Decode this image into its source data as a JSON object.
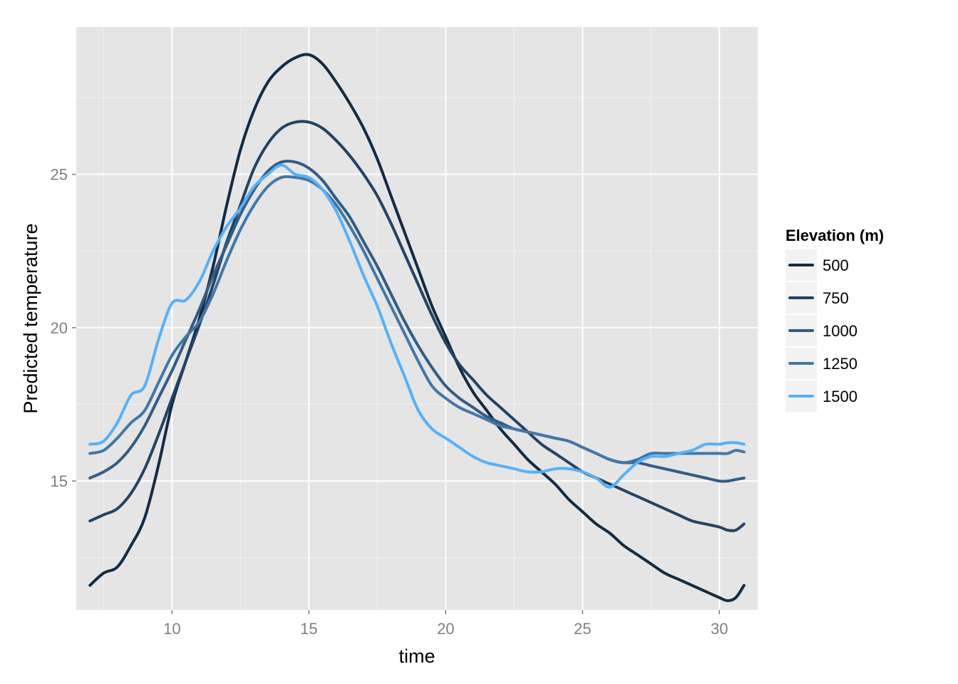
{
  "chart_data": {
    "type": "line",
    "xlabel": "time",
    "ylabel": "Predicted temperature",
    "xlim": [
      6.5,
      31.4
    ],
    "ylim": [
      10.8,
      29.8
    ],
    "x_ticks": [
      10,
      15,
      20,
      25,
      30
    ],
    "y_ticks": [
      15,
      20,
      25
    ],
    "grid": true,
    "legend": {
      "title": "Elevation (m)",
      "position": "right"
    },
    "colors": {
      "panel_bg": "#e5e5e5",
      "grid_major": "#ffffff",
      "grid_minor": "#f2f2f2",
      "legend_key_bg": "#f2f2f2"
    },
    "series": [
      {
        "name": "500",
        "color": "#132b43",
        "x": [
          7,
          7.5,
          8,
          8.5,
          9,
          9.5,
          10,
          10.5,
          11,
          11.5,
          12,
          12.5,
          13,
          13.5,
          14,
          14.5,
          15,
          15.5,
          16,
          16.5,
          17,
          17.5,
          18,
          18.5,
          19,
          19.5,
          20,
          20.5,
          21,
          21.5,
          22,
          22.5,
          23,
          23.5,
          24,
          24.5,
          25,
          25.5,
          26,
          26.5,
          27,
          27.5,
          28,
          28.5,
          29,
          29.5,
          30,
          30.3,
          30.6,
          30.9
        ],
        "y": [
          11.6,
          12,
          12.2,
          12.9,
          13.8,
          15.5,
          17.5,
          18.9,
          20.3,
          22.0,
          24.0,
          25.8,
          27.1,
          28.0,
          28.5,
          28.8,
          28.9,
          28.6,
          28.0,
          27.3,
          26.5,
          25.5,
          24.3,
          23.1,
          21.9,
          20.7,
          19.7,
          18.7,
          17.9,
          17.3,
          16.7,
          16.2,
          15.7,
          15.3,
          14.9,
          14.4,
          14.0,
          13.6,
          13.3,
          12.9,
          12.6,
          12.3,
          12.0,
          11.8,
          11.6,
          11.4,
          11.2,
          11.1,
          11.2,
          11.6
        ]
      },
      {
        "name": "750",
        "color": "#234363",
        "x": [
          7,
          7.5,
          8,
          8.5,
          9,
          9.5,
          10,
          10.5,
          11,
          11.5,
          12,
          12.5,
          13,
          13.5,
          14,
          14.5,
          15,
          15.5,
          16,
          16.5,
          17,
          17.5,
          18,
          18.5,
          19,
          19.5,
          20,
          20.5,
          21,
          21.5,
          22,
          22.5,
          23,
          23.5,
          24,
          24.5,
          25,
          25.5,
          26,
          26.5,
          27,
          27.5,
          28,
          28.5,
          29,
          29.5,
          30,
          30.3,
          30.6,
          30.9
        ],
        "y": [
          13.7,
          13.9,
          14.1,
          14.6,
          15.4,
          16.5,
          17.7,
          18.9,
          20.1,
          21.4,
          22.8,
          24.0,
          25.2,
          26.0,
          26.5,
          26.7,
          26.7,
          26.5,
          26.1,
          25.6,
          25.0,
          24.3,
          23.4,
          22.4,
          21.4,
          20.4,
          19.5,
          18.8,
          18.3,
          17.8,
          17.4,
          17.0,
          16.6,
          16.2,
          15.9,
          15.6,
          15.3,
          15.1,
          14.9,
          14.7,
          14.5,
          14.3,
          14.1,
          13.9,
          13.7,
          13.6,
          13.5,
          13.4,
          13.4,
          13.6
        ]
      },
      {
        "name": "1000",
        "color": "#325c84",
        "x": [
          7,
          7.5,
          8,
          8.5,
          9,
          9.5,
          10,
          10.5,
          11,
          11.5,
          12,
          12.5,
          13,
          13.5,
          14,
          14.5,
          15,
          15.5,
          16,
          16.5,
          17,
          17.5,
          18,
          18.5,
          19,
          19.5,
          20,
          20.5,
          21,
          21.5,
          22,
          22.5,
          23,
          23.5,
          24,
          24.5,
          25,
          25.5,
          26,
          26.5,
          27,
          27.5,
          28,
          28.5,
          29,
          29.5,
          30,
          30.3,
          30.6,
          30.9
        ],
        "y": [
          15.1,
          15.3,
          15.6,
          16.1,
          16.8,
          17.7,
          18.6,
          19.6,
          20.6,
          21.7,
          22.7,
          23.7,
          24.5,
          25.1,
          25.4,
          25.4,
          25.2,
          24.8,
          24.2,
          23.6,
          22.8,
          22.0,
          21.1,
          20.2,
          19.4,
          18.7,
          18.1,
          17.7,
          17.4,
          17.1,
          16.9,
          16.7,
          16.6,
          16.5,
          16.4,
          16.3,
          16.1,
          15.9,
          15.7,
          15.6,
          15.6,
          15.5,
          15.4,
          15.3,
          15.2,
          15.1,
          15.0,
          15.0,
          15.05,
          15.1
        ]
      },
      {
        "name": "1250",
        "color": "#4277a6",
        "x": [
          7,
          7.5,
          8,
          8.5,
          9,
          9.5,
          10,
          10.5,
          11,
          11.5,
          12,
          12.5,
          13,
          13.5,
          14,
          14.5,
          15,
          15.5,
          16,
          16.5,
          17,
          17.5,
          18,
          18.5,
          19,
          19.5,
          20,
          20.5,
          21,
          21.5,
          22,
          22.5,
          23,
          23.5,
          24,
          24.5,
          25,
          25.5,
          26,
          26.5,
          27,
          27.5,
          28,
          28.5,
          29,
          29.5,
          30,
          30.3,
          30.6,
          30.9
        ],
        "y": [
          15.9,
          16.0,
          16.4,
          16.9,
          17.3,
          18.2,
          19.1,
          19.7,
          20.2,
          21.1,
          22.2,
          23.2,
          24.0,
          24.6,
          24.9,
          24.9,
          24.8,
          24.5,
          24.0,
          23.3,
          22.5,
          21.6,
          20.7,
          19.8,
          18.9,
          18.1,
          17.7,
          17.4,
          17.2,
          17.0,
          16.8,
          16.7,
          16.6,
          16.5,
          16.4,
          16.3,
          16.1,
          15.9,
          15.7,
          15.6,
          15.7,
          15.9,
          15.9,
          15.9,
          15.9,
          15.9,
          15.9,
          15.9,
          16.0,
          15.95
        ]
      },
      {
        "name": "1500",
        "color": "#56b1f7",
        "x": [
          7,
          7.5,
          8,
          8.5,
          9,
          9.5,
          10,
          10.5,
          11,
          11.5,
          12,
          12.5,
          13,
          13.5,
          14,
          14.5,
          15,
          15.5,
          16,
          16.5,
          17,
          17.5,
          18,
          18.5,
          19,
          19.5,
          20,
          20.5,
          21,
          21.5,
          22,
          22.5,
          23,
          23.5,
          24,
          24.5,
          25,
          25.5,
          26,
          26.5,
          27,
          27.5,
          28,
          28.5,
          29,
          29.5,
          30,
          30.3,
          30.6,
          30.9
        ],
        "y": [
          16.2,
          16.3,
          16.9,
          17.8,
          18.1,
          19.6,
          20.8,
          20.9,
          21.5,
          22.5,
          23.3,
          23.9,
          24.6,
          25.0,
          25.3,
          25.0,
          24.9,
          24.5,
          23.8,
          22.8,
          21.7,
          20.7,
          19.5,
          18.4,
          17.3,
          16.7,
          16.4,
          16.1,
          15.8,
          15.6,
          15.5,
          15.4,
          15.3,
          15.3,
          15.4,
          15.4,
          15.3,
          15.1,
          14.8,
          15.2,
          15.6,
          15.8,
          15.8,
          15.9,
          16.0,
          16.2,
          16.2,
          16.25,
          16.25,
          16.2
        ]
      }
    ]
  }
}
